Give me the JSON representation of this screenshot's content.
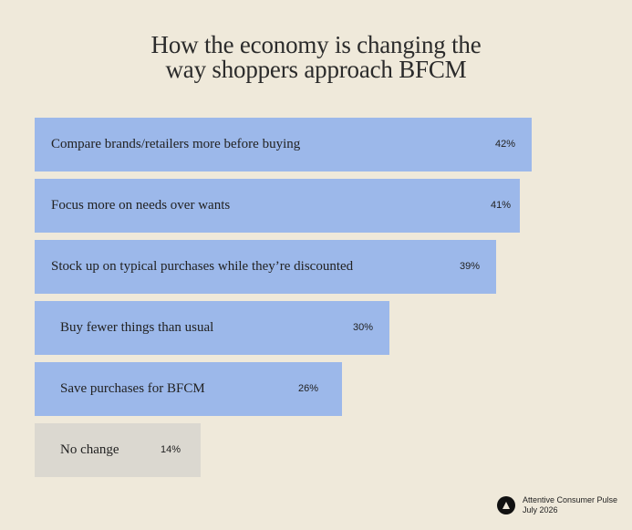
{
  "chart_data": {
    "type": "bar",
    "orientation": "horizontal",
    "title_lines": [
      "How the economy is changing the",
      "way shoppers approach BFCM"
    ],
    "categories": [
      "Compare brands/retailers more before buying",
      "Focus more on needs over wants",
      "Stock up on typical purchases while they’re discounted",
      "Buy fewer things than usual",
      "Save purchases for BFCM",
      "No change"
    ],
    "values": [
      42,
      41,
      39,
      30,
      26,
      14
    ],
    "value_labels": [
      "42%",
      "41%",
      "39%",
      "30%",
      "26%",
      "14%"
    ],
    "bar_colors": [
      "#9cb8ea",
      "#9cb8ea",
      "#9cb8ea",
      "#9cb8ea",
      "#9cb8ea",
      "#dbd8d0"
    ],
    "grid": false,
    "legend": "none"
  },
  "footer": {
    "source_line1": "Attentive Consumer Pulse",
    "source_line2": "July 2026",
    "logo_icon": "attentive-logo-icon"
  },
  "colors": {
    "background": "#efe9da",
    "bar_primary": "#9cb8ea",
    "bar_neutral": "#dbd8d0"
  }
}
